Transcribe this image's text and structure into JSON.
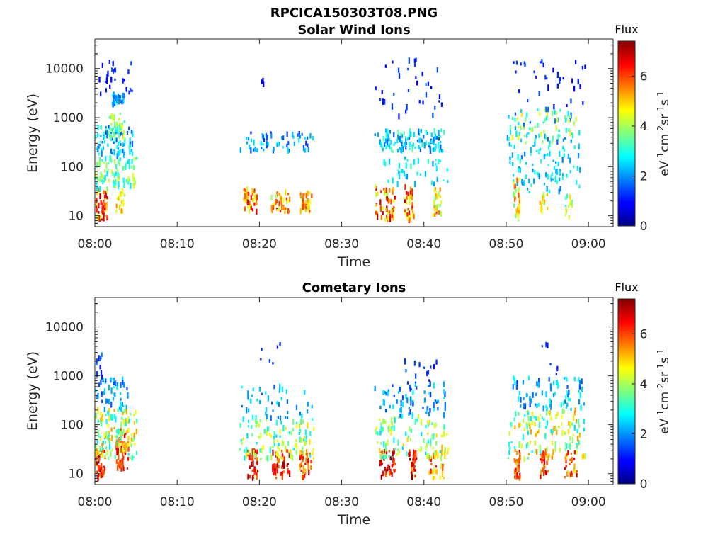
{
  "figure": {
    "file_title": "RPCICA150303T08.PNG"
  },
  "chart_data": [
    {
      "type": "heatmap",
      "title": "Solar Wind Ions",
      "xlabel": "Time",
      "ylabel": "Energy (eV)",
      "yscale": "log",
      "ylim": [
        6,
        40000
      ],
      "x_ticks": [
        "08:00",
        "08:10",
        "08:20",
        "08:30",
        "08:40",
        "08:50",
        "09:00"
      ],
      "x_tick_minutes": [
        0,
        10,
        20,
        30,
        40,
        50,
        60
      ],
      "xlim_minutes": [
        0,
        63
      ],
      "y_ticks": [
        "10",
        "100",
        "1000",
        "10000"
      ],
      "y_tick_values": [
        10,
        100,
        1000,
        10000
      ],
      "colorbar": {
        "title": "Flux",
        "label": "eV-1cm-2sr-1s-1",
        "ticks": [
          "0",
          "2",
          "4",
          "6"
        ],
        "range": [
          0,
          7.4
        ]
      },
      "clusters": [
        {
          "t": [
            0.0,
            1.4
          ],
          "e": [
            8,
            35
          ],
          "f": [
            4.5,
            7.2
          ],
          "n": 50
        },
        {
          "t": [
            0.0,
            5.0
          ],
          "e": [
            35,
            150
          ],
          "f": [
            2.5,
            4.5
          ],
          "n": 90
        },
        {
          "t": [
            0.0,
            4.5
          ],
          "e": [
            150,
            700
          ],
          "f": [
            1.5,
            3.2
          ],
          "n": 80
        },
        {
          "t": [
            1.5,
            3.5
          ],
          "e": [
            400,
            1200
          ],
          "f": [
            3.0,
            4.6
          ],
          "n": 40
        },
        {
          "t": [
            2.0,
            3.5
          ],
          "e": [
            1800,
            3200
          ],
          "f": [
            1.6,
            2.6
          ],
          "n": 35
        },
        {
          "t": [
            0.0,
            4.5
          ],
          "e": [
            3000,
            15000
          ],
          "f": [
            0.8,
            1.6
          ],
          "n": 25
        },
        {
          "t": [
            2.5,
            3.5
          ],
          "e": [
            12,
            35
          ],
          "f": [
            4.0,
            5.5
          ],
          "n": 20
        },
        {
          "t": [
            18.0,
            19.8
          ],
          "e": [
            12,
            35
          ],
          "f": [
            4.0,
            6.8
          ],
          "n": 40
        },
        {
          "t": [
            21.3,
            23.6
          ],
          "e": [
            12,
            30
          ],
          "f": [
            4.0,
            6.5
          ],
          "n": 40
        },
        {
          "t": [
            24.9,
            26.3
          ],
          "e": [
            12,
            30
          ],
          "f": [
            4.0,
            6.2
          ],
          "n": 35
        },
        {
          "t": [
            17.5,
            26.5
          ],
          "e": [
            200,
            500
          ],
          "f": [
            1.2,
            2.8
          ],
          "n": 60
        },
        {
          "t": [
            20.0,
            20.5
          ],
          "e": [
            4500,
            6000
          ],
          "f": [
            0.8,
            1.3
          ],
          "n": 4
        },
        {
          "t": [
            34.0,
            36.5
          ],
          "e": [
            8,
            40
          ],
          "f": [
            4.0,
            7.2
          ],
          "n": 55
        },
        {
          "t": [
            37.5,
            38.7
          ],
          "e": [
            8,
            40
          ],
          "f": [
            4.0,
            7.0
          ],
          "n": 40
        },
        {
          "t": [
            41.0,
            42.0
          ],
          "e": [
            10,
            40
          ],
          "f": [
            3.5,
            6.0
          ],
          "n": 25
        },
        {
          "t": [
            33.8,
            42.5
          ],
          "e": [
            200,
            550
          ],
          "f": [
            1.5,
            3.5
          ],
          "n": 120
        },
        {
          "t": [
            35.0,
            43.0
          ],
          "e": [
            40,
            150
          ],
          "f": [
            2.0,
            3.2
          ],
          "n": 40
        },
        {
          "t": [
            34.0,
            43.5
          ],
          "e": [
            1000,
            15000
          ],
          "f": [
            0.8,
            1.6
          ],
          "n": 35
        },
        {
          "t": [
            50.8,
            51.6
          ],
          "e": [
            8,
            60
          ],
          "f": [
            3.5,
            6.0
          ],
          "n": 30
        },
        {
          "t": [
            54.0,
            55.0
          ],
          "e": [
            12,
            30
          ],
          "f": [
            3.5,
            5.5
          ],
          "n": 15
        },
        {
          "t": [
            57.0,
            58.0
          ],
          "e": [
            8,
            25
          ],
          "f": [
            3.0,
            5.0
          ],
          "n": 15
        },
        {
          "t": [
            50.3,
            59.0
          ],
          "e": [
            30,
            300
          ],
          "f": [
            1.8,
            3.2
          ],
          "n": 90
        },
        {
          "t": [
            50.0,
            59.0
          ],
          "e": [
            300,
            1500
          ],
          "f": [
            1.6,
            4.8
          ],
          "n": 90
        },
        {
          "t": [
            50.5,
            59.5
          ],
          "e": [
            1500,
            15000
          ],
          "f": [
            0.8,
            1.6
          ],
          "n": 35
        }
      ]
    },
    {
      "type": "heatmap",
      "title": "Cometary Ions",
      "xlabel": "Time",
      "ylabel": "Energy (eV)",
      "yscale": "log",
      "ylim": [
        6,
        40000
      ],
      "x_ticks": [
        "08:00",
        "08:10",
        "08:20",
        "08:30",
        "08:40",
        "08:50",
        "09:00"
      ],
      "x_tick_minutes": [
        0,
        10,
        20,
        30,
        40,
        50,
        60
      ],
      "xlim_minutes": [
        0,
        63
      ],
      "y_ticks": [
        "10",
        "100",
        "1000",
        "10000"
      ],
      "y_tick_values": [
        10,
        100,
        1000,
        10000
      ],
      "colorbar": {
        "title": "Flux",
        "label": "eV-1cm-2sr-1s-1",
        "ticks": [
          "0",
          "2",
          "4",
          "6"
        ],
        "range": [
          0,
          7.4
        ]
      },
      "clusters": [
        {
          "t": [
            0.0,
            1.2
          ],
          "e": [
            8,
            30
          ],
          "f": [
            5.5,
            7.3
          ],
          "n": 45
        },
        {
          "t": [
            2.5,
            4.0
          ],
          "e": [
            12,
            80
          ],
          "f": [
            5.0,
            7.2
          ],
          "n": 55
        },
        {
          "t": [
            0.0,
            5.0
          ],
          "e": [
            20,
            200
          ],
          "f": [
            2.5,
            5.5
          ],
          "n": 130
        },
        {
          "t": [
            0.0,
            4.0
          ],
          "e": [
            200,
            900
          ],
          "f": [
            1.3,
            2.8
          ],
          "n": 50
        },
        {
          "t": [
            0.0,
            1.0
          ],
          "e": [
            900,
            3000
          ],
          "f": [
            1.0,
            2.0
          ],
          "n": 10
        },
        {
          "t": [
            18.5,
            19.8
          ],
          "e": [
            8,
            30
          ],
          "f": [
            5.5,
            7.3
          ],
          "n": 40
        },
        {
          "t": [
            21.5,
            23.6
          ],
          "e": [
            8,
            30
          ],
          "f": [
            5.5,
            7.3
          ],
          "n": 45
        },
        {
          "t": [
            24.8,
            26.2
          ],
          "e": [
            8,
            30
          ],
          "f": [
            5.0,
            7.0
          ],
          "n": 35
        },
        {
          "t": [
            17.5,
            26.8
          ],
          "e": [
            20,
            130
          ],
          "f": [
            2.5,
            5.0
          ],
          "n": 110
        },
        {
          "t": [
            17.5,
            26.5
          ],
          "e": [
            130,
            600
          ],
          "f": [
            1.5,
            2.8
          ],
          "n": 45
        },
        {
          "t": [
            20.0,
            23.0
          ],
          "e": [
            1200,
            4500
          ],
          "f": [
            1.0,
            1.6
          ],
          "n": 6
        },
        {
          "t": [
            34.5,
            36.5
          ],
          "e": [
            8,
            30
          ],
          "f": [
            5.5,
            7.3
          ],
          "n": 45
        },
        {
          "t": [
            38.0,
            39.0
          ],
          "e": [
            8,
            30
          ],
          "f": [
            5.5,
            7.3
          ],
          "n": 35
        },
        {
          "t": [
            40.5,
            42.5
          ],
          "e": [
            8,
            35
          ],
          "f": [
            4.0,
            6.5
          ],
          "n": 30
        },
        {
          "t": [
            33.8,
            43.0
          ],
          "e": [
            20,
            150
          ],
          "f": [
            2.5,
            5.0
          ],
          "n": 110
        },
        {
          "t": [
            33.8,
            42.5
          ],
          "e": [
            150,
            700
          ],
          "f": [
            1.3,
            2.8
          ],
          "n": 70
        },
        {
          "t": [
            37.0,
            41.5
          ],
          "e": [
            700,
            2200
          ],
          "f": [
            1.0,
            1.8
          ],
          "n": 14
        },
        {
          "t": [
            50.8,
            51.6
          ],
          "e": [
            8,
            30
          ],
          "f": [
            5.0,
            7.0
          ],
          "n": 30
        },
        {
          "t": [
            54.0,
            55.0
          ],
          "e": [
            8,
            30
          ],
          "f": [
            5.0,
            7.0
          ],
          "n": 30
        },
        {
          "t": [
            57.0,
            58.5
          ],
          "e": [
            8,
            30
          ],
          "f": [
            4.5,
            7.0
          ],
          "n": 30
        },
        {
          "t": [
            50.0,
            59.5
          ],
          "e": [
            20,
            200
          ],
          "f": [
            2.5,
            5.5
          ],
          "n": 140
        },
        {
          "t": [
            50.5,
            59.5
          ],
          "e": [
            200,
            1000
          ],
          "f": [
            1.4,
            3.0
          ],
          "n": 80
        },
        {
          "t": [
            53.5,
            56.5
          ],
          "e": [
            1000,
            4500
          ],
          "f": [
            1.0,
            1.6
          ],
          "n": 6
        }
      ]
    }
  ]
}
